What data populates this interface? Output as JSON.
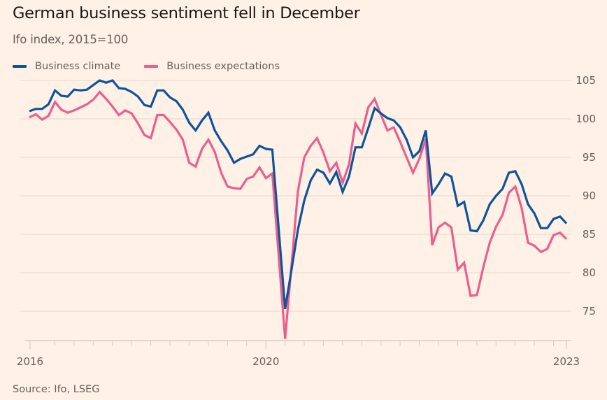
{
  "header": {
    "title": "German business sentiment fell in December",
    "subtitle": "Ifo index, 2015=100"
  },
  "legend": [
    {
      "label": "Business climate",
      "color": "#0F5499"
    },
    {
      "label": "Business expectations",
      "color": "#EB5E8D"
    }
  ],
  "footer": {
    "source": "Source: Ifo, LSEG"
  },
  "chart_data": {
    "type": "line",
    "title": "German business sentiment fell in December",
    "subtitle": "Ifo index, 2015=100",
    "xlabel": "",
    "ylabel": "",
    "frequency": "monthly",
    "ylim": [
      71,
      106
    ],
    "yticks": [
      75,
      80,
      85,
      90,
      95,
      100,
      105
    ],
    "y_axis_side": "right",
    "grid": true,
    "legend_position": "top-left",
    "x_count": 85,
    "xtick_labels": [
      {
        "label": "2016",
        "index": 0
      },
      {
        "label": "2020",
        "index": 37
      },
      {
        "label": "2023",
        "index": 84
      }
    ],
    "minor_tick_every": 3,
    "series": [
      {
        "name": "Business climate",
        "color": "#0F5499",
        "values": [
          101.0,
          101.3,
          101.3,
          101.9,
          103.7,
          103.0,
          102.9,
          103.8,
          103.7,
          103.8,
          104.4,
          105.0,
          104.7,
          105.0,
          104.0,
          103.9,
          103.5,
          102.9,
          101.8,
          101.6,
          103.7,
          103.7,
          102.8,
          102.3,
          101.2,
          99.5,
          98.5,
          99.8,
          100.8,
          98.5,
          97.1,
          95.9,
          94.3,
          94.8,
          95.1,
          95.4,
          96.5,
          96.1,
          96.0,
          85.6,
          75.3,
          80.4,
          85.6,
          89.4,
          92.0,
          93.4,
          93.0,
          91.6,
          93.1,
          90.5,
          92.5,
          96.3,
          96.3,
          98.8,
          101.4,
          100.7,
          100.1,
          99.8,
          98.9,
          97.3,
          95.0,
          95.8,
          98.5,
          90.3,
          91.5,
          92.9,
          92.5,
          88.7,
          89.2,
          85.5,
          85.4,
          86.8,
          88.9,
          90.0,
          90.9,
          93.0,
          93.2,
          91.5,
          88.9,
          87.7,
          85.8,
          85.8,
          87.0,
          87.3,
          86.4
        ]
      },
      {
        "name": "Business expectations",
        "color": "#EB5E8D",
        "values": [
          100.2,
          100.6,
          99.9,
          100.4,
          102.2,
          101.2,
          100.8,
          101.1,
          101.5,
          101.9,
          102.5,
          103.5,
          102.6,
          101.6,
          100.5,
          101.1,
          100.7,
          99.4,
          97.9,
          97.5,
          100.5,
          100.5,
          99.6,
          98.6,
          97.3,
          94.3,
          93.8,
          96.1,
          97.3,
          95.7,
          93.0,
          91.2,
          91.0,
          90.9,
          92.2,
          92.5,
          93.7,
          92.3,
          92.9,
          82.1,
          71.4,
          81.0,
          90.6,
          95.0,
          96.5,
          97.5,
          95.6,
          93.2,
          94.3,
          91.7,
          94.1,
          99.4,
          98.1,
          101.5,
          102.6,
          100.5,
          98.5,
          98.9,
          97.0,
          95.0,
          93.0,
          94.8,
          97.4,
          83.6,
          85.9,
          86.5,
          85.9,
          80.4,
          81.3,
          77.0,
          77.1,
          80.7,
          83.9,
          86.0,
          87.5,
          90.4,
          91.2,
          88.4,
          83.9,
          83.5,
          82.7,
          83.1,
          84.9,
          85.2,
          84.4
        ]
      }
    ]
  }
}
